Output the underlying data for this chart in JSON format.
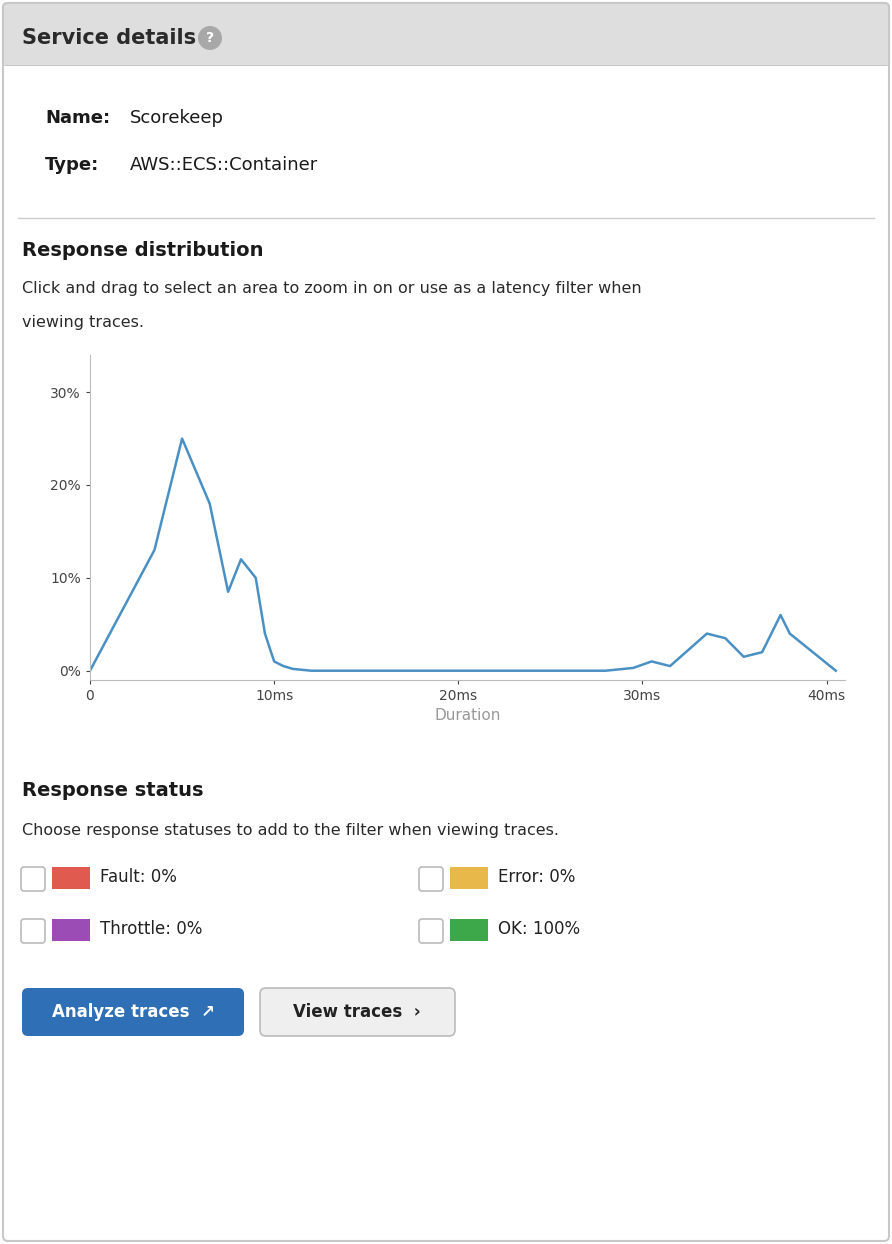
{
  "title": "Service details",
  "name_label": "Name:",
  "name_value": "Scorekeep",
  "type_label": "Type:",
  "type_value": "AWS::ECS::Container",
  "section_response_dist": "Response distribution",
  "response_dist_line1": "Click and drag to select an area to zoom in on or use as a latency filter when",
  "response_dist_line2": "viewing traces.",
  "chart_xlabel": "Duration",
  "chart_ylabel_ticks": [
    "0%",
    "10%",
    "20%",
    "30%"
  ],
  "chart_ytick_vals": [
    0,
    10,
    20,
    30
  ],
  "chart_xtick_labels": [
    "0",
    "10ms",
    "20ms",
    "30ms",
    "40ms"
  ],
  "chart_xtick_vals": [
    0,
    10,
    20,
    30,
    40
  ],
  "chart_xlim": [
    0,
    41
  ],
  "chart_ylim": [
    -1,
    34
  ],
  "line_color": "#4a90c4",
  "line_data_x": [
    0,
    3.5,
    4.0,
    5.0,
    6.5,
    7.5,
    8.2,
    9.0,
    9.5,
    10.0,
    10.5,
    11.0,
    12.0,
    13.0,
    15.0,
    20.0,
    25.0,
    28.0,
    29.5,
    30.5,
    31.5,
    33.5,
    34.5,
    35.5,
    36.5,
    37.5,
    38.0,
    40.5
  ],
  "line_data_y": [
    0,
    13,
    17,
    25,
    18,
    8.5,
    12,
    10,
    4,
    1,
    0.5,
    0.2,
    0,
    0,
    0,
    0,
    0,
    0,
    0.3,
    1,
    0.5,
    4,
    3.5,
    1.5,
    2,
    6,
    4,
    0
  ],
  "section_response_status": "Response status",
  "response_status_desc": "Choose response statuses to add to the filter when viewing traces.",
  "status_items": [
    {
      "label": "Fault: 0%",
      "color": "#e05a50"
    },
    {
      "label": "Error: 0%",
      "color": "#e8b84b"
    },
    {
      "label": "Throttle: 0%",
      "color": "#9b4db5"
    },
    {
      "label": "OK: 100%",
      "color": "#3da84a"
    }
  ],
  "btn_analyze_text": "Analyze traces  ↗",
  "btn_view_text": "View traces  ›",
  "btn_analyze_color": "#2e6fb5",
  "btn_view_color": "#efefef",
  "header_bg": "#dedede",
  "panel_bg": "#ffffff",
  "border_color": "#c8c8c8",
  "text_dark": "#1a1a1a",
  "text_gray": "#999999"
}
